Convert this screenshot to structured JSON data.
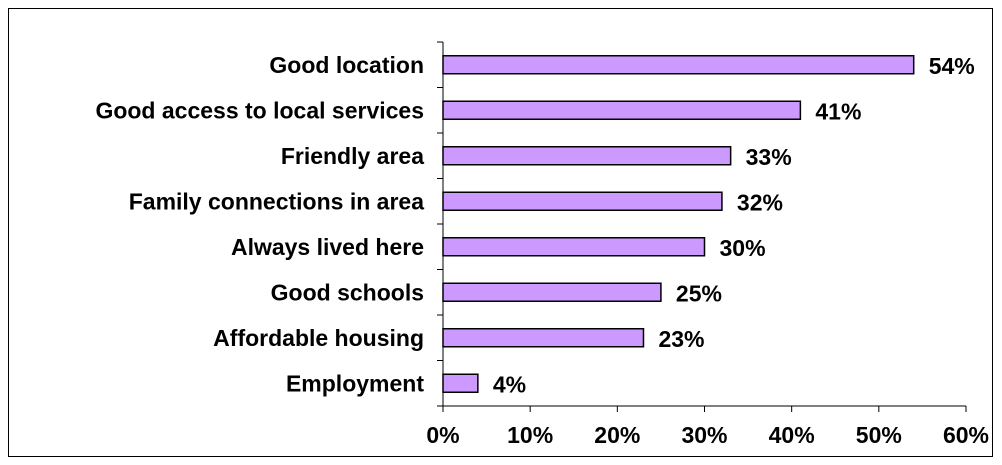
{
  "chart_data": {
    "type": "bar",
    "orientation": "horizontal",
    "title": "",
    "xlabel": "",
    "ylabel": "",
    "categories": [
      "Good location",
      "Good access to local services",
      "Friendly area",
      "Family connections in area",
      "Always lived here",
      "Good schools",
      "Affordable housing",
      "Employment"
    ],
    "values": [
      54,
      41,
      33,
      32,
      30,
      25,
      23,
      4
    ],
    "value_labels": [
      "54%",
      "41%",
      "33%",
      "32%",
      "30%",
      "25%",
      "23%",
      "4%"
    ],
    "xlim": [
      0,
      60
    ],
    "x_ticks": [
      0,
      10,
      20,
      30,
      40,
      50,
      60
    ],
    "x_tick_labels": [
      "0%",
      "10%",
      "20%",
      "30%",
      "40%",
      "50%",
      "60%"
    ],
    "grid": false,
    "legend": "none",
    "bar_color": "#cc99ff",
    "bar_edge_color": "#000000"
  }
}
